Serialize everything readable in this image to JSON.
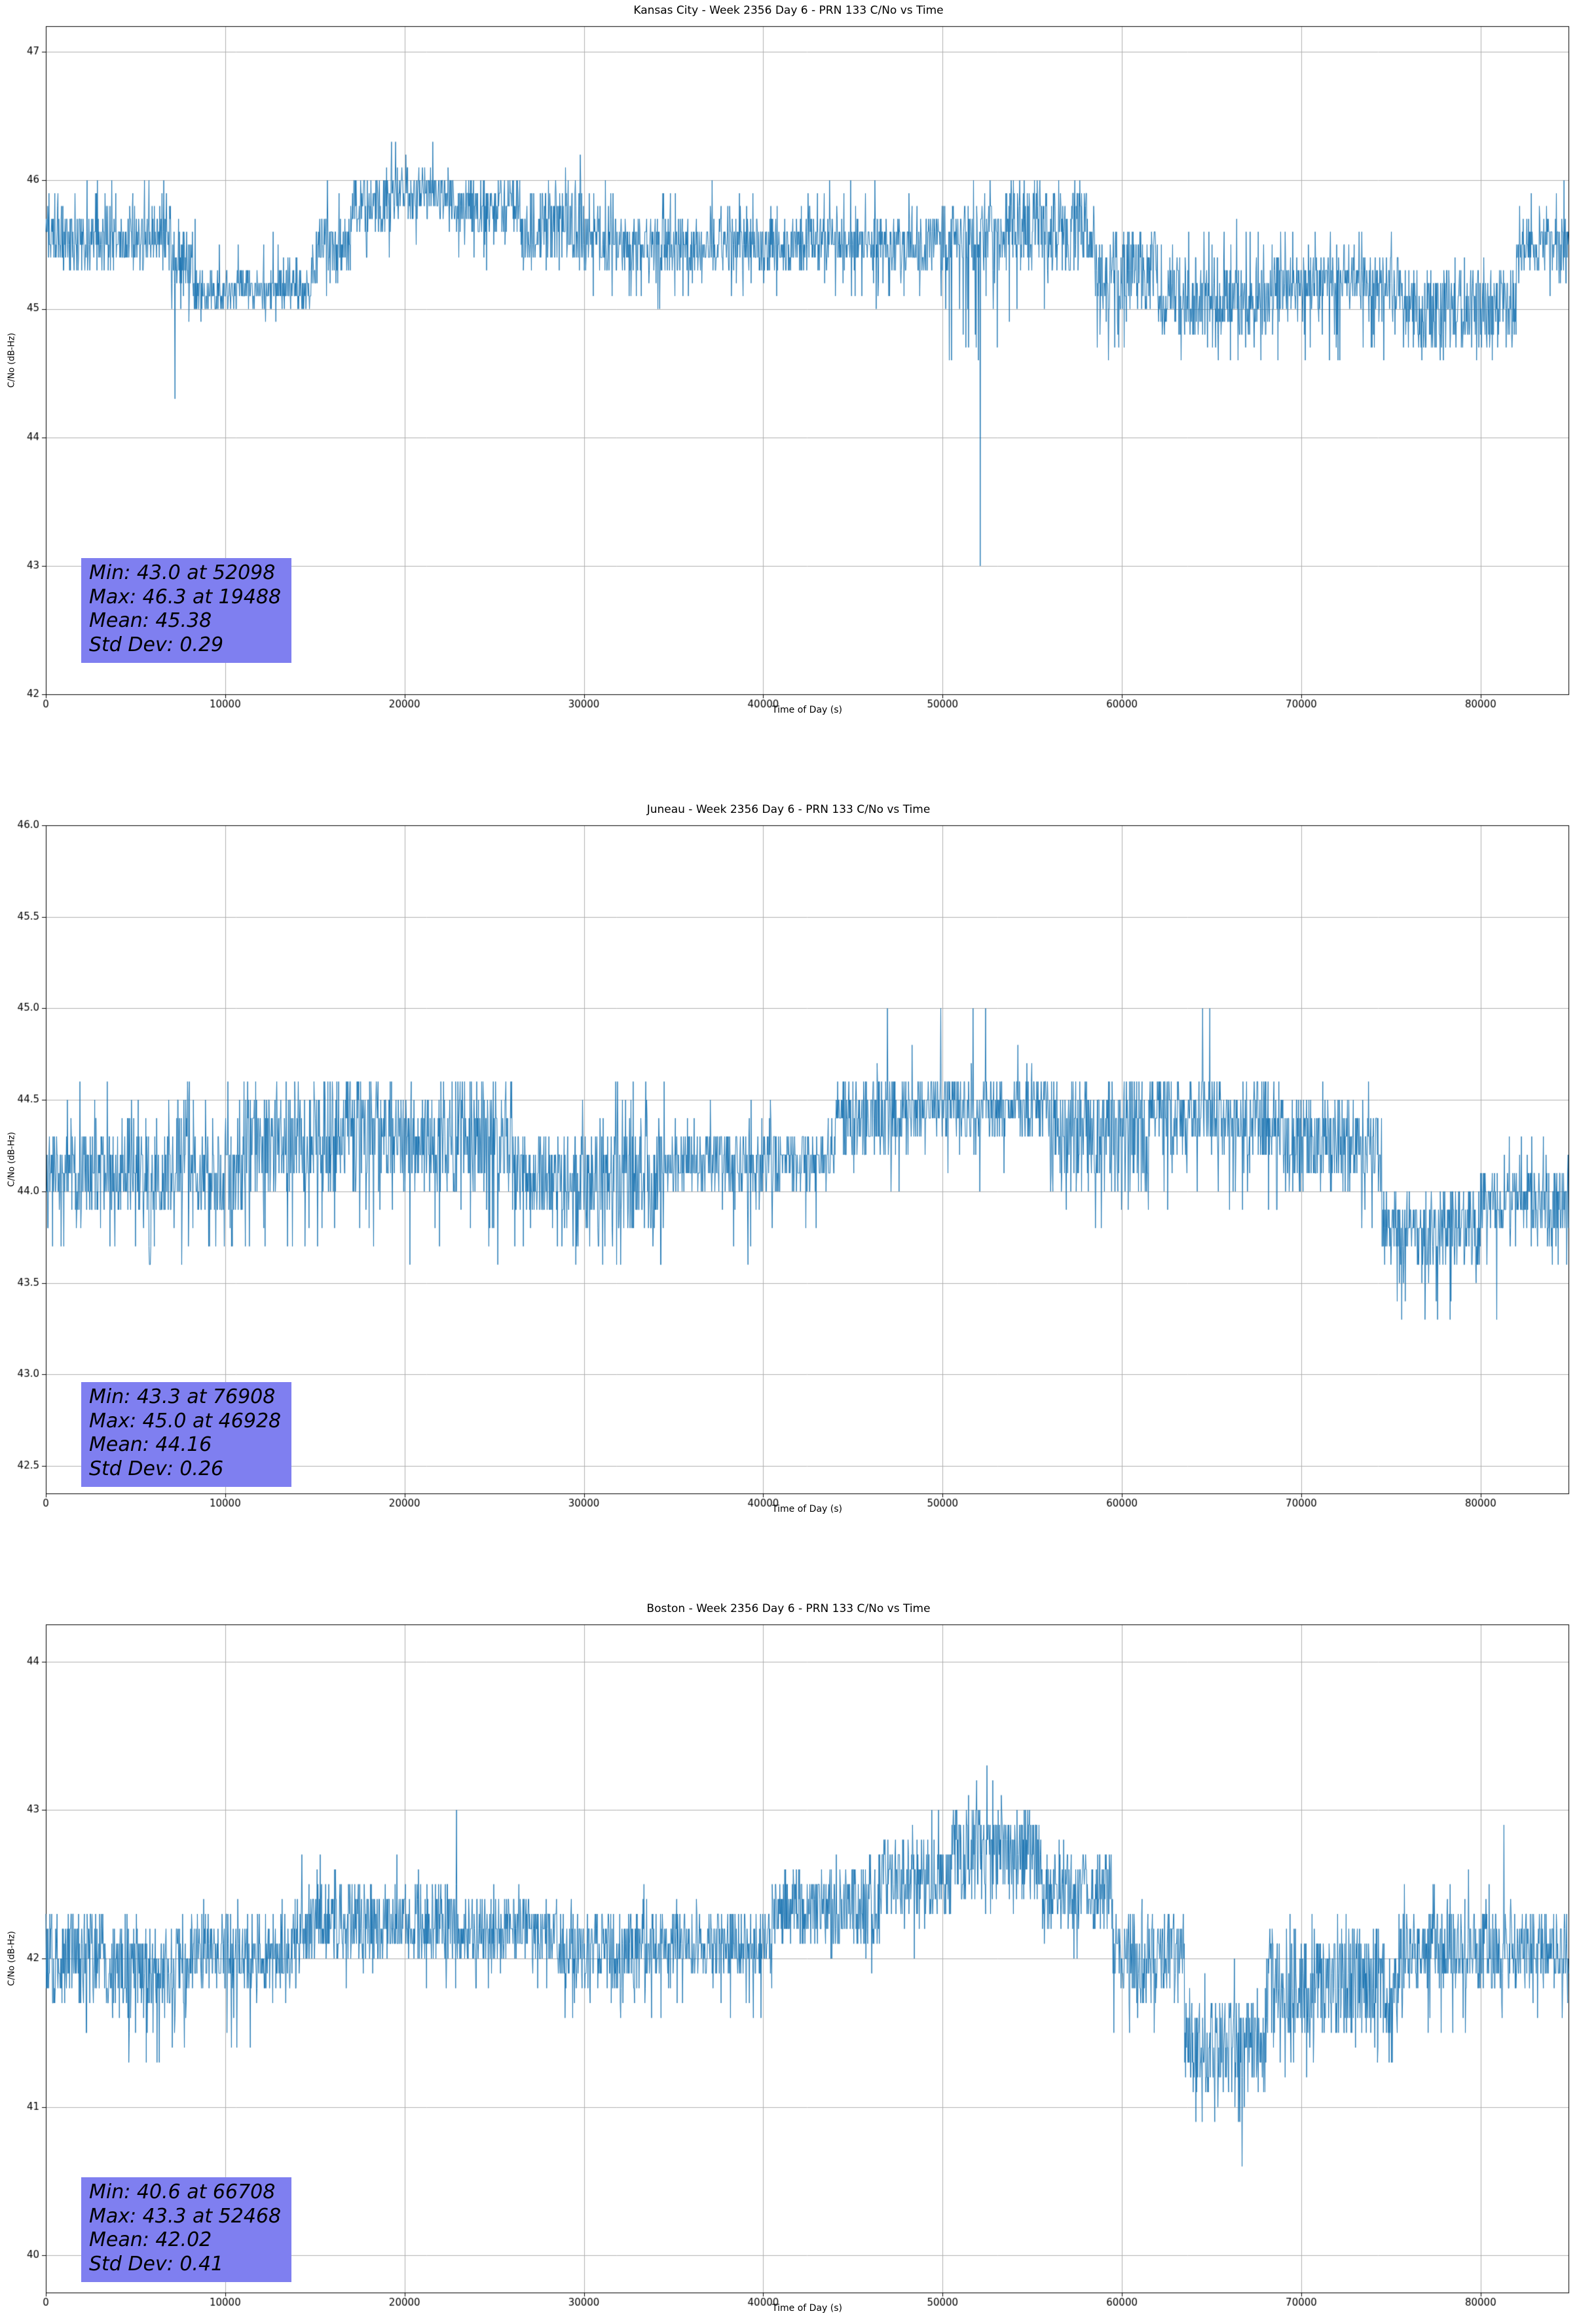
{
  "page_title": "PRN 133 C/No vs Time - Week 2356 Day 6",
  "line_color_default": "#1f77b4",
  "chart_data": [
    {
      "type": "line",
      "station": "Kansas City",
      "week": "2356",
      "day": "6",
      "prn": "133",
      "title": "Kansas City - Week 2356 Day 6 - PRN 133 C/No vs Time",
      "xlabel": "Time of Day (s)",
      "ylabel": "C/No (dB-Hz)",
      "line_color": "#1f77b4",
      "annotation_bg": "#7f7ff0",
      "grid": true,
      "legend": "none",
      "xlim": [
        0,
        84900
      ],
      "ylim": [
        42.0,
        47.2
      ],
      "xticks": [
        0,
        10000,
        20000,
        30000,
        40000,
        50000,
        60000,
        70000,
        80000
      ],
      "xtick_labels": [
        "0",
        "10000",
        "20000",
        "30000",
        "40000",
        "50000",
        "60000",
        "70000",
        "80000"
      ],
      "yticks": [
        42,
        43,
        44,
        45,
        46,
        47
      ],
      "ytick_labels": [
        "42",
        "43",
        "44",
        "45",
        "46",
        "47"
      ],
      "quantization_db": 0.1,
      "stats": {
        "min": 43.0,
        "min_time_s": 52098,
        "max": 46.3,
        "max_time_s": 19488,
        "mean": 45.38,
        "std_dev": 0.29
      },
      "stats_text": {
        "min": "Min: 43.0 at 52098",
        "max": "Max: 46.3 at 19488",
        "mean": "Mean: 45.38",
        "std": "Std Dev: 0.29"
      },
      "segments": [
        [
          0,
          7000,
          45.3,
          45.7,
          45.3,
          46.0,
          0.3
        ],
        [
          7000,
          8200,
          45.0,
          45.6,
          44.3,
          45.7,
          0.06
        ],
        [
          8200,
          14800,
          45.0,
          45.3,
          44.9,
          45.7,
          0.12
        ],
        [
          14800,
          17000,
          45.2,
          45.7,
          45.0,
          46.0,
          0.12
        ],
        [
          17000,
          19200,
          45.6,
          46.0,
          45.3,
          46.1,
          0.15
        ],
        [
          19200,
          22500,
          45.7,
          46.1,
          45.3,
          46.3,
          0.12
        ],
        [
          22500,
          26500,
          45.6,
          46.0,
          45.3,
          46.1,
          0.12
        ],
        [
          26500,
          30000,
          45.3,
          46.0,
          45.2,
          46.3,
          0.08
        ],
        [
          30000,
          41000,
          45.3,
          45.7,
          45.0,
          46.0,
          0.18
        ],
        [
          41000,
          50000,
          45.3,
          45.7,
          45.0,
          46.0,
          0.22
        ],
        [
          50000,
          53500,
          45.3,
          45.8,
          44.6,
          46.0,
          0.15
        ],
        [
          53500,
          58500,
          45.3,
          46.0,
          44.8,
          46.0,
          0.15
        ],
        [
          58500,
          62000,
          45.0,
          45.6,
          44.6,
          45.7,
          0.2
        ],
        [
          62000,
          68500,
          44.8,
          45.3,
          44.6,
          45.7,
          0.3
        ],
        [
          68500,
          75500,
          45.0,
          45.4,
          44.6,
          45.6,
          0.25
        ],
        [
          75500,
          82000,
          44.7,
          45.3,
          44.6,
          45.4,
          0.2
        ],
        [
          82000,
          84900,
          45.3,
          45.7,
          45.0,
          46.0,
          0.2
        ]
      ],
      "events": [
        [
          7200,
          44.3
        ],
        [
          19488,
          46.3
        ],
        [
          50500,
          44.6
        ],
        [
          51300,
          44.7
        ],
        [
          52098,
          43.0
        ]
      ]
    },
    {
      "type": "line",
      "station": "Juneau",
      "week": "2356",
      "day": "6",
      "prn": "133",
      "title": "Juneau - Week 2356 Day 6 - PRN 133 C/No vs Time",
      "xlabel": "Time of Day (s)",
      "ylabel": "C/No (dB-Hz)",
      "line_color": "#1f77b4",
      "annotation_bg": "#7f7ff0",
      "grid": true,
      "legend": "none",
      "xlim": [
        0,
        84900
      ],
      "ylim": [
        42.35,
        46.0
      ],
      "xticks": [
        0,
        10000,
        20000,
        30000,
        40000,
        50000,
        60000,
        70000,
        80000
      ],
      "xtick_labels": [
        "0",
        "10000",
        "20000",
        "30000",
        "40000",
        "50000",
        "60000",
        "70000",
        "80000"
      ],
      "yticks": [
        42.5,
        43.0,
        43.5,
        44.0,
        44.5,
        45.0,
        45.5,
        46.0
      ],
      "ytick_labels": [
        "42.5",
        "43.0",
        "43.5",
        "44.0",
        "44.5",
        "45.0",
        "45.5",
        "46.0"
      ],
      "quantization_db": 0.1,
      "stats": {
        "min": 43.3,
        "min_time_s": 76908,
        "max": 45.0,
        "max_time_s": 46928,
        "mean": 44.16,
        "std_dev": 0.26
      },
      "stats_text": {
        "min": "Min: 43.3 at 76908",
        "max": "Max: 45.0 at 46928",
        "mean": "Mean: 44.16",
        "std": "Std Dev: 0.26"
      },
      "segments": [
        [
          0,
          4500,
          43.9,
          44.3,
          43.6,
          44.6,
          0.25
        ],
        [
          4500,
          11000,
          43.9,
          44.3,
          43.6,
          44.6,
          0.35
        ],
        [
          11000,
          26000,
          44.0,
          44.6,
          43.6,
          44.6,
          0.2
        ],
        [
          26000,
          29500,
          43.9,
          44.3,
          43.6,
          44.4,
          0.25
        ],
        [
          29500,
          34500,
          43.8,
          44.3,
          43.6,
          44.6,
          0.3
        ],
        [
          34500,
          44000,
          44.0,
          44.3,
          43.6,
          44.6,
          0.12
        ],
        [
          44000,
          47500,
          44.2,
          44.6,
          44.0,
          44.8,
          0.1
        ],
        [
          47500,
          56000,
          44.3,
          44.6,
          44.0,
          44.8,
          0.12
        ],
        [
          56000,
          61500,
          44.0,
          44.6,
          43.7,
          44.6,
          0.15
        ],
        [
          61500,
          69000,
          44.2,
          44.6,
          43.8,
          44.7,
          0.1
        ],
        [
          69000,
          74500,
          44.0,
          44.5,
          43.8,
          44.6,
          0.12
        ],
        [
          74500,
          80000,
          43.6,
          44.0,
          43.4,
          44.0,
          0.2
        ],
        [
          80000,
          84900,
          43.8,
          44.1,
          43.6,
          44.3,
          0.3
        ]
      ],
      "events": [
        [
          46928,
          45.0
        ],
        [
          49900,
          45.0
        ],
        [
          51700,
          45.0
        ],
        [
          52400,
          45.0
        ],
        [
          64500,
          45.0
        ],
        [
          64900,
          45.0
        ],
        [
          75600,
          43.3
        ],
        [
          76908,
          43.3
        ],
        [
          77600,
          43.3
        ],
        [
          78300,
          43.3
        ],
        [
          80900,
          43.3
        ]
      ]
    },
    {
      "type": "line",
      "station": "Boston",
      "week": "2356",
      "day": "6",
      "prn": "133",
      "title": "Boston - Week 2356 Day 6 - PRN 133 C/No vs Time",
      "xlabel": "Time of Day (s)",
      "ylabel": "C/No (dB-Hz)",
      "line_color": "#1f77b4",
      "annotation_bg": "#7f7ff0",
      "grid": true,
      "legend": "none",
      "xlim": [
        0,
        84900
      ],
      "ylim": [
        39.75,
        44.25
      ],
      "xticks": [
        0,
        10000,
        20000,
        30000,
        40000,
        50000,
        60000,
        70000,
        80000
      ],
      "xtick_labels": [
        "0",
        "10000",
        "20000",
        "30000",
        "40000",
        "50000",
        "60000",
        "70000",
        "80000"
      ],
      "yticks": [
        40,
        41,
        42,
        43,
        44
      ],
      "ytick_labels": [
        "40",
        "41",
        "42",
        "43",
        "44"
      ],
      "quantization_db": 0.1,
      "stats": {
        "min": 40.6,
        "min_time_s": 66708,
        "max": 43.3,
        "max_time_s": 52468,
        "mean": 42.02,
        "std_dev": 0.41
      },
      "stats_text": {
        "min": "Min: 40.6 at 66708",
        "max": "Max: 43.3 at 52468",
        "mean": "Mean: 42.02",
        "std": "Std Dev: 0.41"
      },
      "segments": [
        [
          0,
          3200,
          41.7,
          42.3,
          41.4,
          42.3,
          0.12
        ],
        [
          3200,
          8000,
          41.7,
          42.2,
          41.3,
          42.3,
          0.3
        ],
        [
          8000,
          14000,
          41.8,
          42.3,
          41.4,
          42.4,
          0.15
        ],
        [
          14000,
          23000,
          42.0,
          42.5,
          41.8,
          42.7,
          0.15
        ],
        [
          23000,
          28500,
          42.0,
          42.4,
          41.8,
          42.6,
          0.12
        ],
        [
          28500,
          33500,
          41.8,
          42.3,
          41.6,
          42.5,
          0.25
        ],
        [
          33500,
          40500,
          41.9,
          42.3,
          41.6,
          42.5,
          0.15
        ],
        [
          40500,
          46500,
          42.1,
          42.6,
          41.9,
          42.7,
          0.12
        ],
        [
          46500,
          50500,
          42.3,
          42.8,
          42.0,
          43.0,
          0.12
        ],
        [
          50500,
          55500,
          42.4,
          43.0,
          42.2,
          43.1,
          0.12
        ],
        [
          55500,
          59500,
          42.2,
          42.7,
          42.0,
          42.9,
          0.12
        ],
        [
          59500,
          63500,
          41.7,
          42.3,
          41.4,
          42.4,
          0.25
        ],
        [
          63500,
          68000,
          41.1,
          41.7,
          40.9,
          42.0,
          0.25
        ],
        [
          68000,
          75500,
          41.5,
          42.2,
          41.2,
          42.3,
          0.25
        ],
        [
          75500,
          82000,
          41.8,
          42.3,
          41.5,
          42.6,
          0.15
        ],
        [
          82000,
          84900,
          41.8,
          42.3,
          41.5,
          42.4,
          0.15
        ]
      ],
      "events": [
        [
          22900,
          43.0
        ],
        [
          51900,
          43.2
        ],
        [
          52468,
          43.3
        ],
        [
          52800,
          43.2
        ],
        [
          66300,
          41.0
        ],
        [
          66708,
          40.6
        ],
        [
          81300,
          42.9
        ]
      ]
    }
  ]
}
